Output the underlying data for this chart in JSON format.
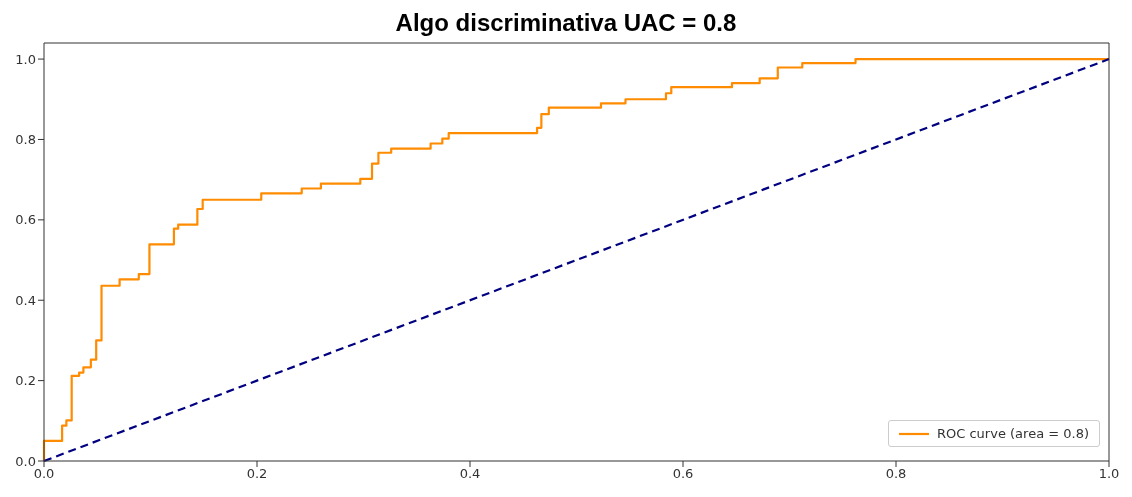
{
  "chart_data": {
    "type": "line",
    "title": "Algo discriminativa UAC = 0.8",
    "xlim": [
      0,
      1
    ],
    "ylim": [
      0,
      1.04
    ],
    "xticks": [
      {
        "value": 0,
        "label": "0.0"
      },
      0.2,
      0.4,
      0.6,
      0.8,
      {
        "value": 1,
        "label": "1.0"
      }
    ],
    "yticks": [
      {
        "value": 0,
        "label": "0.0"
      },
      0.2,
      0.4,
      0.6,
      0.8,
      {
        "value": 1,
        "label": "1.0"
      }
    ],
    "grid": false,
    "legend": "bottom right",
    "series": [
      {
        "name": "ROC curve (area = 0.8)",
        "type": "step",
        "color": "#ff8c00",
        "line_style": "solid",
        "x": [
          0,
          0,
          0.017,
          0.021,
          0.026,
          0.033,
          0.037,
          0.044,
          0.049,
          0.054,
          0.071,
          0.089,
          0.099,
          0.122,
          0.126,
          0.144,
          0.149,
          0.204,
          0.242,
          0.26,
          0.297,
          0.308,
          0.314,
          0.326,
          0.363,
          0.374,
          0.38,
          0.463,
          0.467,
          0.474,
          0.523,
          0.546,
          0.584,
          0.589,
          0.646,
          0.672,
          0.689,
          0.712,
          0.762,
          1
        ],
        "values": [
          0,
          0.05,
          0.088,
          0.101,
          0.212,
          0.22,
          0.233,
          0.252,
          0.3,
          0.436,
          0.452,
          0.465,
          0.539,
          0.578,
          0.588,
          0.627,
          0.65,
          0.666,
          0.678,
          0.69,
          0.702,
          0.74,
          0.767,
          0.777,
          0.79,
          0.802,
          0.816,
          0.829,
          0.863,
          0.879,
          0.89,
          0.9,
          0.915,
          0.93,
          0.94,
          0.952,
          0.979,
          0.99,
          1,
          1
        ]
      },
      {
        "type": "line",
        "color": "#000080",
        "line_style": "dashed",
        "x": [
          0,
          1
        ],
        "values": [
          0,
          1
        ]
      }
    ]
  }
}
